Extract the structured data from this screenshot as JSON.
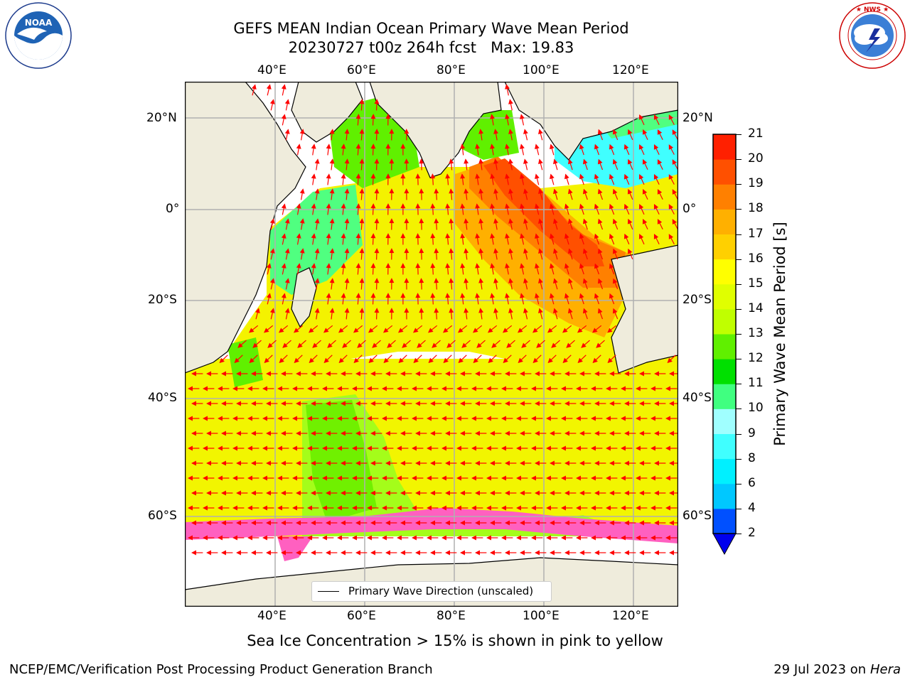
{
  "title": {
    "line1": "GEFS MEAN Indian Ocean Primary Wave Mean Period",
    "line2": "20230727 t00z 264h fcst   Max: 19.83"
  },
  "axes": {
    "lon_labels": [
      "40°E",
      "60°E",
      "80°E",
      "100°E",
      "120°E"
    ],
    "lat_labels": [
      "20°N",
      "0°",
      "20°S",
      "40°S",
      "60°S"
    ]
  },
  "legend": {
    "label": "Primary Wave Direction (unscaled)"
  },
  "colorbar": {
    "label": "Primary Wave Mean Period [s]",
    "ticks": [
      "2",
      "4",
      "6",
      "8",
      "9",
      "10",
      "11",
      "12",
      "13",
      "14",
      "15",
      "16",
      "17",
      "18",
      "19",
      "20",
      "21"
    ],
    "colors": [
      "#0050ff",
      "#00c8ff",
      "#00f0ff",
      "#40ffff",
      "#a0ffff",
      "#40ff80",
      "#00e000",
      "#60f000",
      "#c0ff00",
      "#e0ff00",
      "#ffff00",
      "#ffd000",
      "#ffb000",
      "#ff8000",
      "#ff5000",
      "#ff2000"
    ],
    "extend_color": "#0000ee"
  },
  "subtitle": "Sea Ice Concentration > 15% is shown in pink to yellow",
  "footer": {
    "left": "NCEP/EMC/Verification Post Processing Product Generation Branch",
    "right_date": "29 Jul 2023 on ",
    "right_host": "Hera"
  },
  "logos": {
    "noaa": "NOAA",
    "noaa_ring": "NATIONAL OCEANIC AND ATMOSPHERIC ADMINISTRATION · U.S. DEPARTMENT OF COMMERCE",
    "nws_ring": "NATIONAL WEATHER SERVICE"
  }
}
